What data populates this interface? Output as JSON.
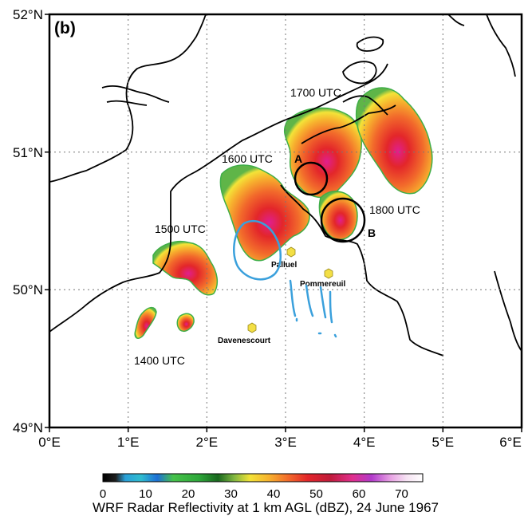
{
  "figure": {
    "panel_label": "(b)",
    "lat_ticks": [
      "52°N",
      "51°N",
      "50°N",
      "49°N"
    ],
    "lon_ticks": [
      "0°E",
      "1°E",
      "2°E",
      "3°E",
      "4°E",
      "5°E",
      "6°E"
    ]
  },
  "map": {
    "extent": {
      "lon": [
        0,
        6
      ],
      "lat": [
        49,
        52
      ]
    },
    "grid": "dotted, every 1°",
    "time_labels": [
      "1400 UTC",
      "1500 UTC",
      "1600 UTC",
      "1700 UTC",
      "1800 UTC"
    ],
    "places": [
      {
        "name": "Palluel",
        "lon": 3.05,
        "lat": 50.27
      },
      {
        "name": "Pommereuil",
        "lon": 3.55,
        "lat": 50.12
      },
      {
        "name": "Davenescourt",
        "lon": 2.6,
        "lat": 49.7
      }
    ],
    "circles": [
      {
        "label": "A",
        "lon": 3.3,
        "lat": 50.8
      },
      {
        "label": "B",
        "lon": 3.7,
        "lat": 50.5
      }
    ],
    "colors": {
      "coast": "#000000",
      "hand_drawing": "#3aa0dc",
      "place_marker": "#f3df45"
    }
  },
  "colorbar": {
    "title": "WRF Radar Reflectivity at 1 km AGL (dBZ), 24 June 1967",
    "ticks": [
      "0",
      "10",
      "20",
      "30",
      "40",
      "50",
      "60",
      "70"
    ],
    "range": [
      0,
      75
    ]
  }
}
